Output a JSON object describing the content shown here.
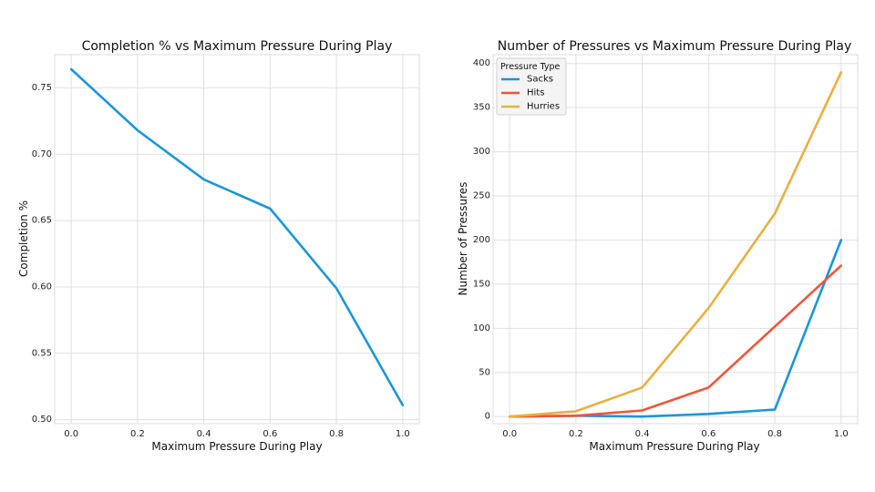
{
  "chart_data": [
    {
      "type": "line",
      "title": "Completion % vs Maximum Pressure During Play",
      "xlabel": "Maximum Pressure During Play",
      "ylabel": "Completion %",
      "xlim": [
        -0.05,
        1.05
      ],
      "ylim": [
        0.497,
        0.775
      ],
      "xticks": [
        "0.0",
        "0.2",
        "0.4",
        "0.6",
        "0.8",
        "1.0"
      ],
      "xtick_values": [
        0,
        0.2,
        0.4,
        0.6,
        0.8,
        1.0
      ],
      "yticks": [
        "0.50",
        "0.55",
        "0.60",
        "0.65",
        "0.70",
        "0.75"
      ],
      "ytick_values": [
        0.5,
        0.55,
        0.6,
        0.65,
        0.7,
        0.75
      ],
      "grid": true,
      "x": [
        0,
        0.2,
        0.4,
        0.6,
        0.8,
        1.0
      ],
      "series": [
        {
          "values": [
            0.764,
            0.718,
            0.681,
            0.659,
            0.599,
            0.511
          ],
          "color": "#1a96d8"
        }
      ]
    },
    {
      "type": "line",
      "title": "Number of Pressures vs Maximum Pressure During Play",
      "xlabel": "Maximum Pressure During Play",
      "ylabel": "Number of Pressures",
      "xlim": [
        -0.05,
        1.05
      ],
      "ylim": [
        -8,
        410
      ],
      "xticks": [
        "0.0",
        "0.2",
        "0.4",
        "0.6",
        "0.8",
        "1.0"
      ],
      "xtick_values": [
        0,
        0.2,
        0.4,
        0.6,
        0.8,
        1.0
      ],
      "yticks": [
        "0",
        "50",
        "100",
        "150",
        "200",
        "250",
        "300",
        "350",
        "400"
      ],
      "ytick_values": [
        0,
        50,
        100,
        150,
        200,
        250,
        300,
        350,
        400
      ],
      "grid": true,
      "legend": {
        "title": "Pressure Type",
        "placement": "top-left"
      },
      "x": [
        0,
        0.2,
        0.4,
        0.6,
        0.8,
        1.0
      ],
      "series": [
        {
          "name": "Sacks",
          "values": [
            0,
            1,
            0,
            3,
            8,
            200
          ],
          "color": "#1a96d8"
        },
        {
          "name": "Hits",
          "values": [
            0,
            1,
            7,
            33,
            102,
            171
          ],
          "color": "#f0553a"
        },
        {
          "name": "Hurries",
          "values": [
            0,
            6,
            33,
            123,
            230,
            390
          ],
          "color": "#e8b040"
        }
      ]
    }
  ]
}
